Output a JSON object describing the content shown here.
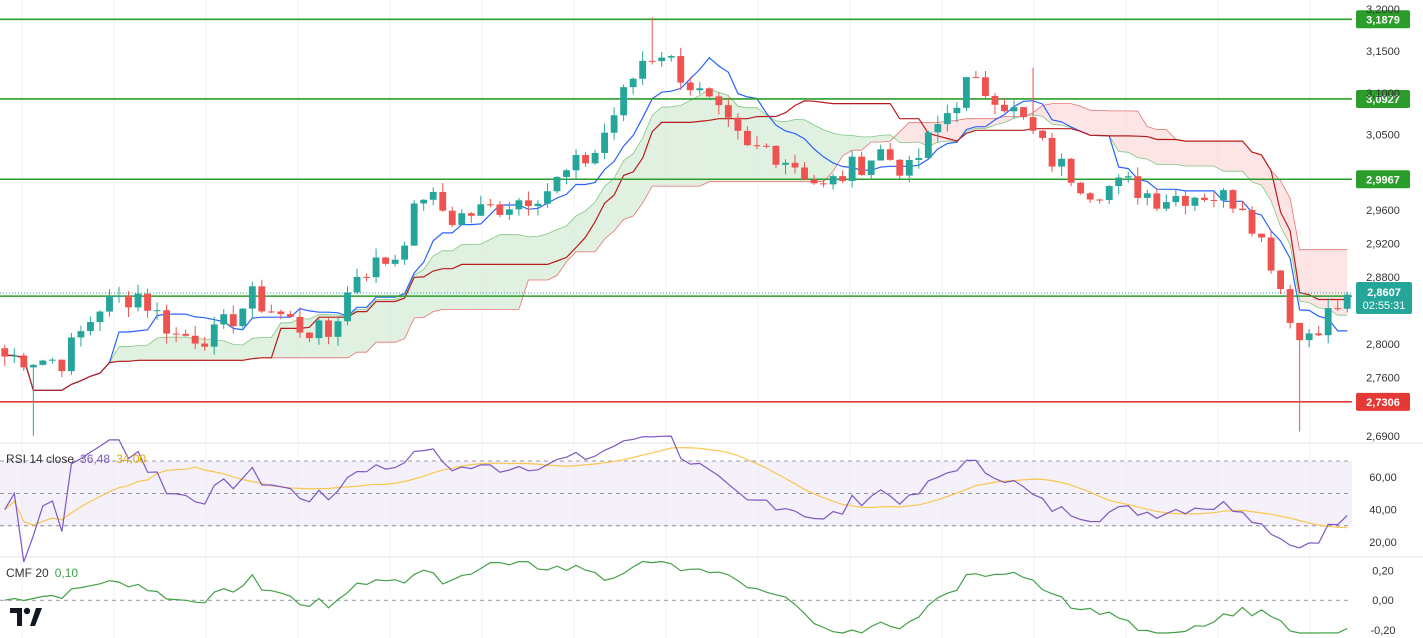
{
  "colors": {
    "up": "#26a69a",
    "down": "#ef5350",
    "tenkan": "#2962ff",
    "kijun": "#b71c1c",
    "kumo_bull": "#c8e6c9",
    "kumo_bear": "#fbd0d0",
    "level_green": "#2a9d2a",
    "level_red": "#e53935",
    "rsi_line": "#7e57c2",
    "rsi_ma": "#f9c74f",
    "cmf_line": "#43a047"
  },
  "chart_data": [
    {
      "type": "candlestick",
      "ylim": [
        2.685,
        3.205
      ],
      "y_ticks": [
        "3,2000",
        "3,1500",
        "3,1000",
        "3,0500",
        "2,9600",
        "2,9200",
        "2,8800",
        "2,8000",
        "2,7600",
        "2,6900"
      ],
      "y_tick_values": [
        3.2,
        3.15,
        3.1,
        3.05,
        2.96,
        2.92,
        2.88,
        2.8,
        2.76,
        2.69
      ],
      "horizontal_levels": [
        {
          "value": 3.1879,
          "label": "3,1879",
          "color": "green"
        },
        {
          "value": 3.0927,
          "label": "3,0927",
          "color": "green"
        },
        {
          "value": 2.9967,
          "label": "2,9967",
          "color": "green"
        },
        {
          "value": 2.857,
          "label": "2,8570",
          "color": "green"
        },
        {
          "value": 2.7306,
          "label": "2,7306",
          "color": "red"
        }
      ],
      "current_price": {
        "value": 2.8607,
        "label": "2,8607",
        "countdown": "02:55:31"
      },
      "indicators": [
        "Ichimoku Tenkan",
        "Ichimoku Kijun",
        "Ichimoku Cloud"
      ]
    },
    {
      "type": "line",
      "legend": {
        "name": "RSI 14 close",
        "value": "36,48",
        "ma_value": "34,00"
      },
      "ylim": [
        12,
        78
      ],
      "y_ticks": [
        "60,00",
        "40,00",
        "20,00"
      ],
      "y_tick_values": [
        60,
        40,
        20
      ],
      "band": [
        30,
        70
      ],
      "midline": 50
    },
    {
      "type": "line",
      "legend": {
        "name": "CMF 20",
        "value": "0,10"
      },
      "ylim": [
        -0.24,
        0.27
      ],
      "y_ticks": [
        "0,20",
        "0,00",
        "-0,20"
      ],
      "y_tick_values": [
        0.2,
        0.0,
        -0.2
      ],
      "zero_line": 0.0
    }
  ]
}
